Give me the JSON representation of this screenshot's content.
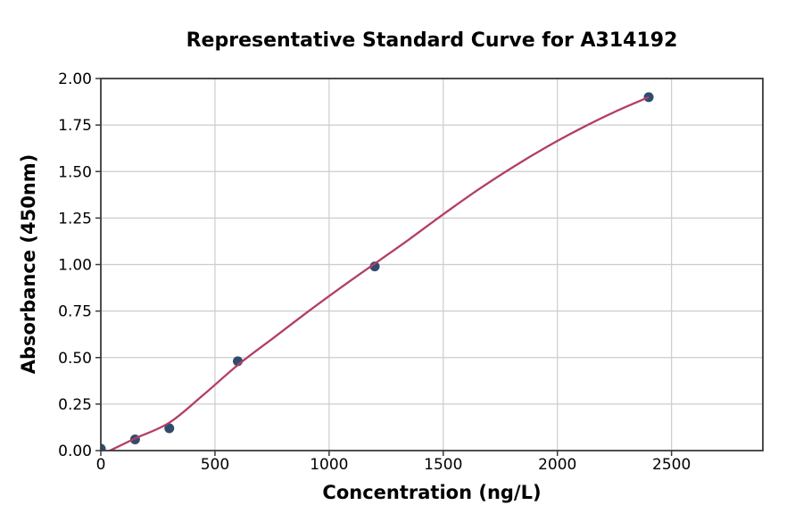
{
  "chart_data": {
    "type": "scatter",
    "title": "Representative Standard Curve for A314192",
    "xlabel": "Concentration (ng/L)",
    "ylabel": "Absorbance (450nm)",
    "xlim": [
      0,
      2900
    ],
    "ylim": [
      0,
      2.0
    ],
    "grid": true,
    "legend": false,
    "x_ticks": [
      {
        "value": 0,
        "label": "0"
      },
      {
        "value": 500,
        "label": "500"
      },
      {
        "value": 1000,
        "label": "1000"
      },
      {
        "value": 1500,
        "label": "1500"
      },
      {
        "value": 2000,
        "label": "2000"
      },
      {
        "value": 2500,
        "label": "2500"
      }
    ],
    "y_ticks": [
      {
        "value": 0.0,
        "label": "0.00"
      },
      {
        "value": 0.25,
        "label": "0.25"
      },
      {
        "value": 0.5,
        "label": "0.50"
      },
      {
        "value": 0.75,
        "label": "0.75"
      },
      {
        "value": 1.0,
        "label": "1.00"
      },
      {
        "value": 1.25,
        "label": "1.25"
      },
      {
        "value": 1.5,
        "label": "1.50"
      },
      {
        "value": 1.75,
        "label": "1.75"
      },
      {
        "value": 2.0,
        "label": "2.00"
      }
    ],
    "series": [
      {
        "name": "standard-points",
        "type": "scatter",
        "marker_radius": 5.5,
        "points": [
          {
            "x": 0,
            "y": 0.01
          },
          {
            "x": 150,
            "y": 0.06
          },
          {
            "x": 300,
            "y": 0.12
          },
          {
            "x": 600,
            "y": 0.48
          },
          {
            "x": 1200,
            "y": 0.99
          },
          {
            "x": 2400,
            "y": 1.9
          }
        ]
      },
      {
        "name": "fitted-curve",
        "type": "line",
        "line_width": 2.3,
        "points": [
          [
            40,
            0.0
          ],
          [
            150,
            0.065
          ],
          [
            300,
            0.15
          ],
          [
            450,
            0.3
          ],
          [
            600,
            0.46
          ],
          [
            750,
            0.6
          ],
          [
            900,
            0.74
          ],
          [
            1050,
            0.875
          ],
          [
            1200,
            1.005
          ],
          [
            1350,
            1.135
          ],
          [
            1500,
            1.27
          ],
          [
            1650,
            1.4
          ],
          [
            1800,
            1.52
          ],
          [
            1950,
            1.63
          ],
          [
            2100,
            1.73
          ],
          [
            2250,
            1.82
          ],
          [
            2400,
            1.9
          ]
        ]
      }
    ],
    "colors": {
      "marker": "#2e4d6e",
      "line": "#b23f63",
      "grid": "#cccccc",
      "spine": "#3a3a3a",
      "text": "#000000",
      "background": "#ffffff"
    }
  }
}
